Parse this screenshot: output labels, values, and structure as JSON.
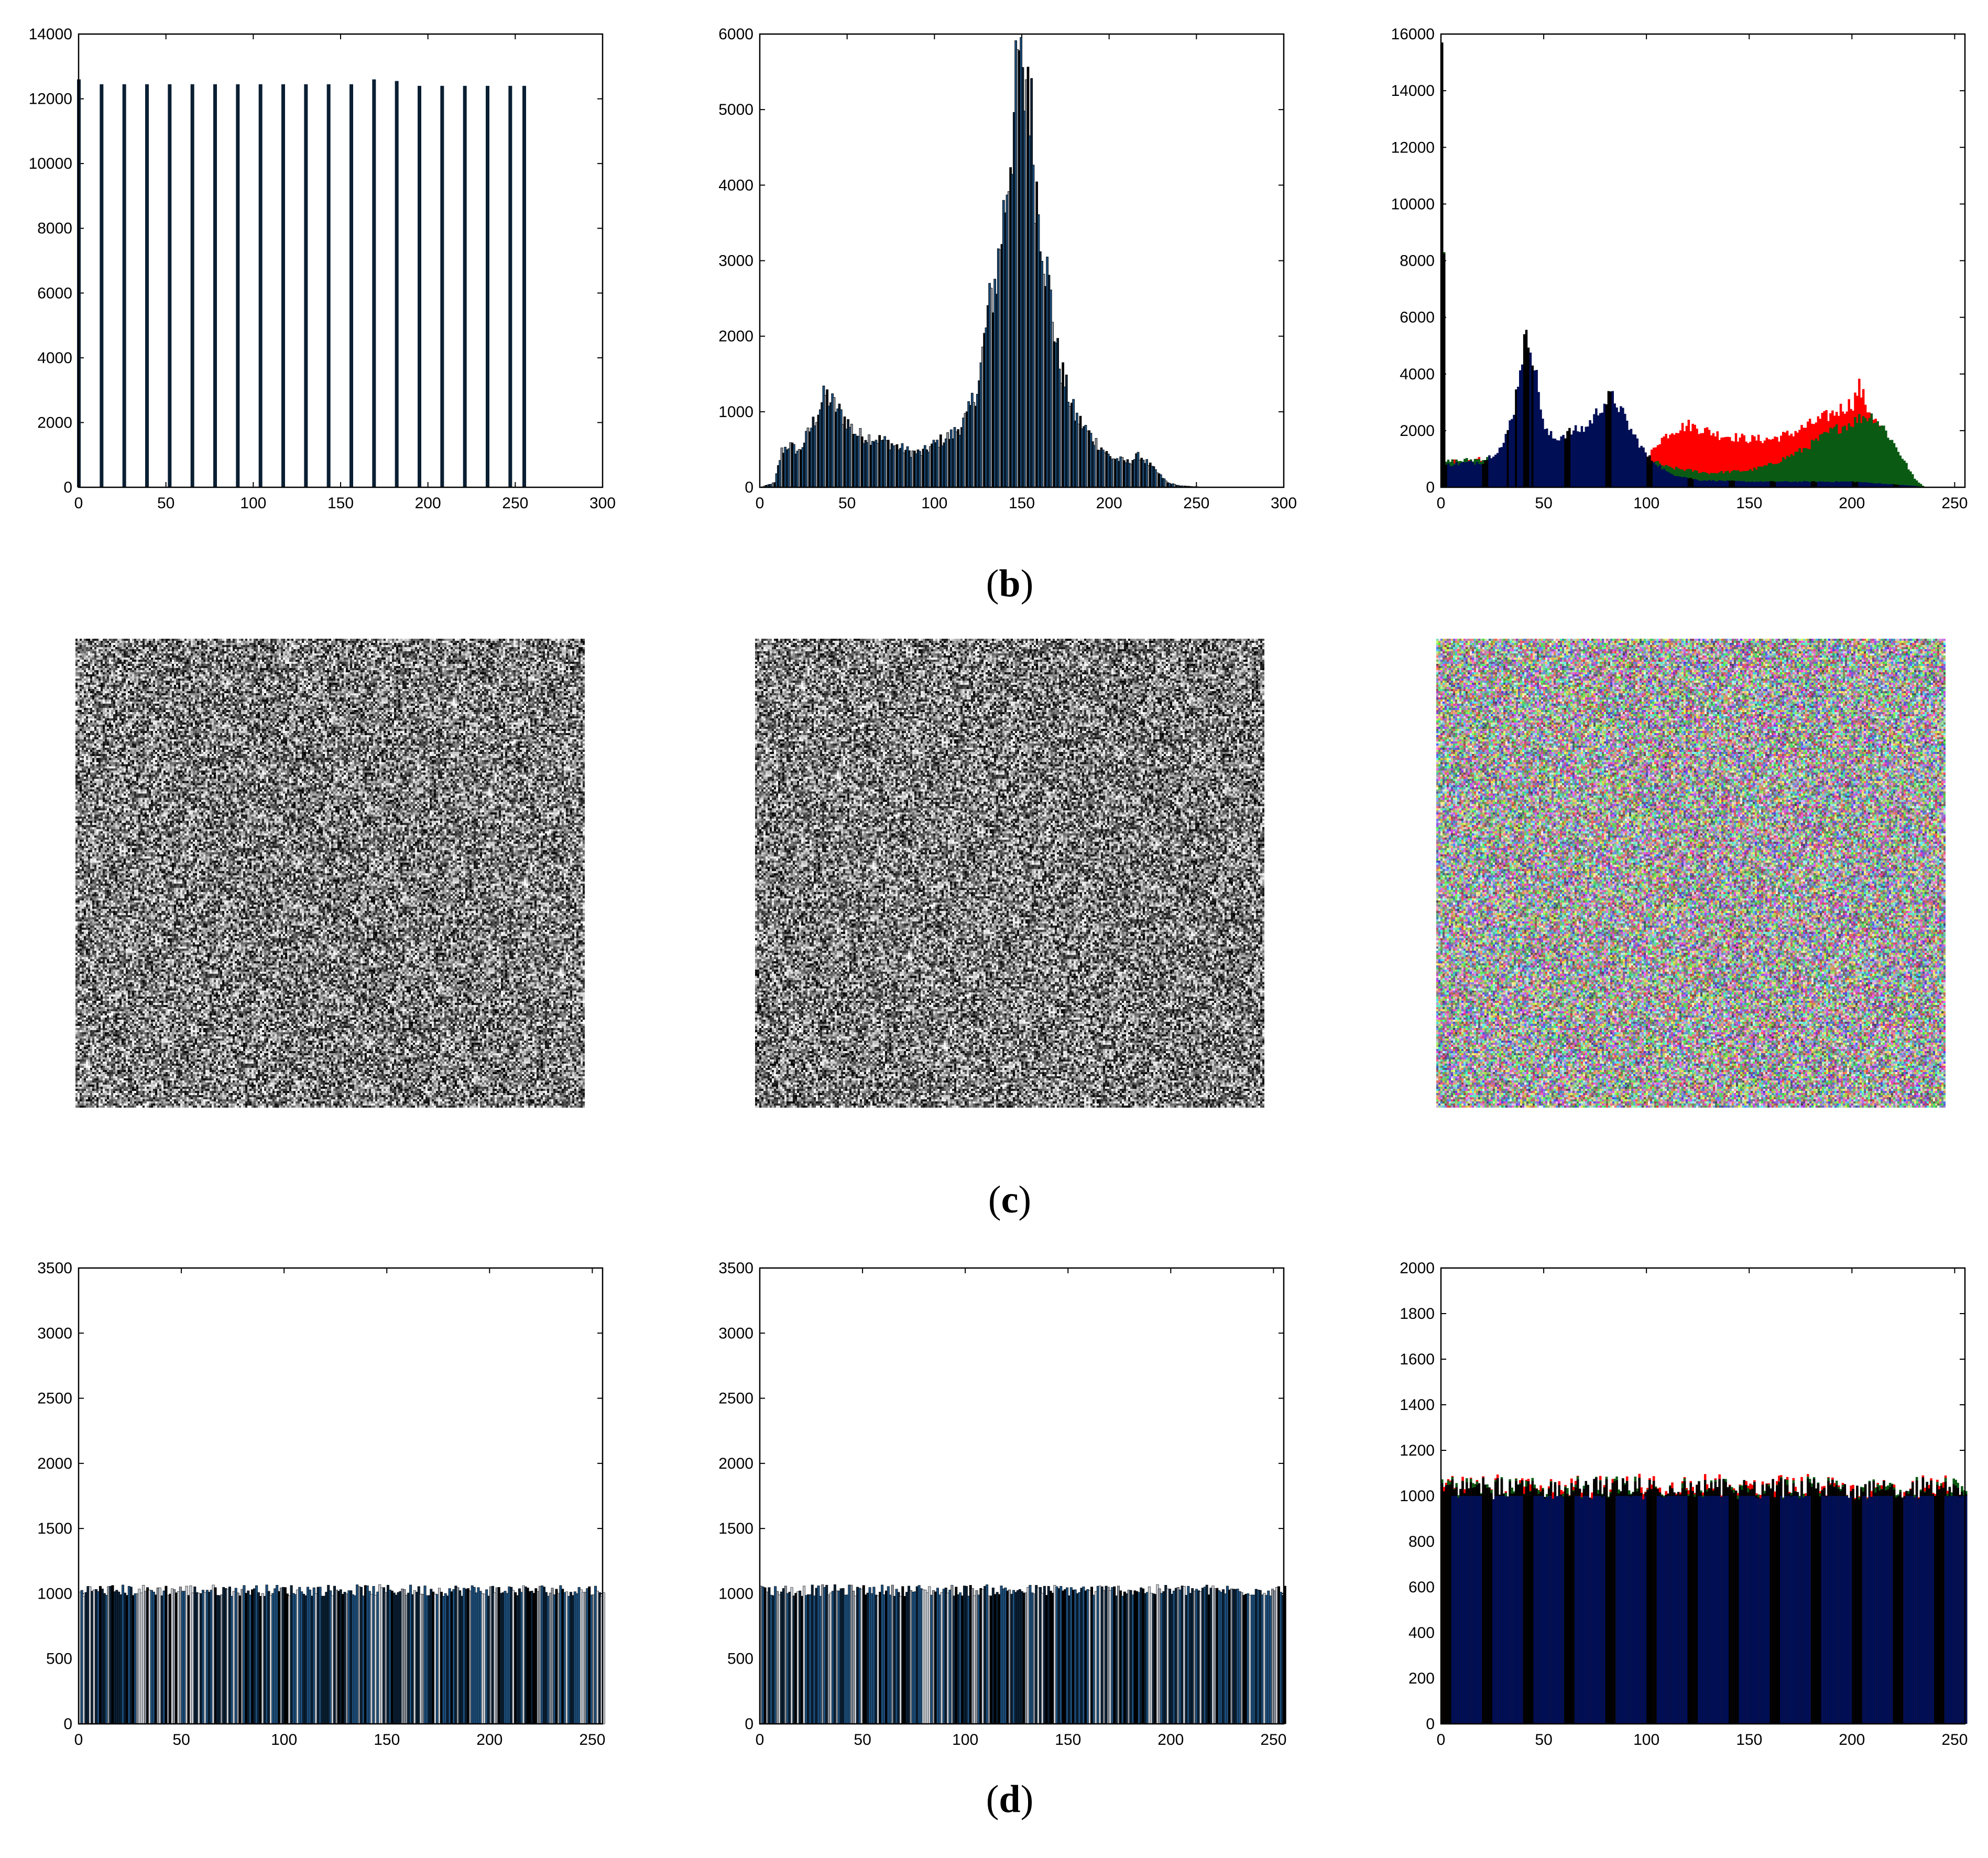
{
  "captions": {
    "b": "b",
    "c": "c",
    "d": "d"
  },
  "colors": {
    "axis": "#000000",
    "bar_dark": "#0a1f33",
    "bar_blue": "#1d4f7c",
    "bar_grey": "#8a9099",
    "bar_black": "#000000",
    "navy": "#000e55",
    "red": "#ff0000",
    "green": "#0a5a14",
    "noise_grey": "#808080"
  },
  "noise_images": [
    {
      "mode": "grey"
    },
    {
      "mode": "grey"
    },
    {
      "mode": "color"
    }
  ],
  "chart_data": [
    {
      "type": "bar",
      "panel": "b1",
      "xlim": [
        0,
        300
      ],
      "ylim": [
        0,
        14000
      ],
      "xticks": [
        0,
        50,
        100,
        150,
        200,
        250,
        300
      ],
      "yticks": [
        0,
        2000,
        4000,
        6000,
        8000,
        10000,
        12000,
        14000
      ],
      "x": [
        0,
        13,
        26,
        39,
        52,
        65,
        78,
        91,
        104,
        117,
        130,
        143,
        156,
        169,
        182,
        195,
        208,
        221,
        234,
        247,
        255
      ],
      "values": [
        12600,
        12450,
        12450,
        12450,
        12450,
        12450,
        12450,
        12450,
        12450,
        12450,
        12450,
        12450,
        12450,
        12600,
        12550,
        12400,
        12400,
        12400,
        12400,
        12400,
        12400
      ]
    },
    {
      "type": "bar",
      "panel": "b2",
      "xlim": [
        0,
        300
      ],
      "ylim": [
        0,
        6000
      ],
      "xticks": [
        0,
        50,
        100,
        150,
        200,
        250,
        300
      ],
      "yticks": [
        0,
        1000,
        2000,
        3000,
        4000,
        5000,
        6000
      ],
      "profile": [
        [
          0,
          0
        ],
        [
          8,
          60
        ],
        [
          12,
          480
        ],
        [
          16,
          560
        ],
        [
          22,
          470
        ],
        [
          30,
          850
        ],
        [
          37,
          1230
        ],
        [
          45,
          1000
        ],
        [
          55,
          700
        ],
        [
          70,
          620
        ],
        [
          85,
          470
        ],
        [
          92,
          450
        ],
        [
          100,
          580
        ],
        [
          110,
          700
        ],
        [
          118,
          920
        ],
        [
          125,
          1400
        ],
        [
          130,
          2300
        ],
        [
          135,
          2800
        ],
        [
          140,
          3800
        ],
        [
          145,
          4900
        ],
        [
          148,
          5750
        ],
        [
          150,
          5100
        ],
        [
          153,
          5600
        ],
        [
          157,
          4100
        ],
        [
          163,
          3000
        ],
        [
          170,
          1750
        ],
        [
          175,
          1300
        ],
        [
          180,
          950
        ],
        [
          190,
          650
        ],
        [
          200,
          400
        ],
        [
          210,
          330
        ],
        [
          217,
          420
        ],
        [
          225,
          240
        ],
        [
          233,
          60
        ],
        [
          240,
          20
        ],
        [
          255,
          0
        ]
      ]
    },
    {
      "type": "area",
      "panel": "b3",
      "xlim": [
        0,
        255
      ],
      "ylim": [
        0,
        16000
      ],
      "xticks": [
        0,
        50,
        100,
        150,
        200,
        250
      ],
      "yticks": [
        0,
        2000,
        4000,
        6000,
        8000,
        10000,
        12000,
        14000,
        16000
      ],
      "series": [
        {
          "color": "red",
          "profile": [
            [
              0,
              15700
            ],
            [
              2,
              900
            ],
            [
              20,
              1000
            ],
            [
              100,
              1000
            ],
            [
              105,
              1600
            ],
            [
              112,
              2000
            ],
            [
              120,
              2200
            ],
            [
              135,
              1850
            ],
            [
              150,
              1700
            ],
            [
              160,
              1700
            ],
            [
              170,
              1900
            ],
            [
              180,
              2250
            ],
            [
              190,
              2600
            ],
            [
              200,
              3000
            ],
            [
              203,
              3550
            ],
            [
              207,
              2800
            ],
            [
              212,
              2200
            ],
            [
              220,
              1200
            ],
            [
              230,
              200
            ],
            [
              235,
              0
            ],
            [
              255,
              0
            ]
          ]
        },
        {
          "color": "green",
          "profile": [
            [
              0,
              15700
            ],
            [
              2,
              900
            ],
            [
              20,
              1000
            ],
            [
              100,
              1000
            ],
            [
              110,
              700
            ],
            [
              130,
              500
            ],
            [
              150,
              600
            ],
            [
              160,
              800
            ],
            [
              175,
              1300
            ],
            [
              190,
              2000
            ],
            [
              200,
              2300
            ],
            [
              205,
              2500
            ],
            [
              210,
              2500
            ],
            [
              215,
              2100
            ],
            [
              222,
              1300
            ],
            [
              230,
              300
            ],
            [
              235,
              0
            ],
            [
              255,
              0
            ]
          ]
        },
        {
          "color": "navy",
          "profile": [
            [
              0,
              15700
            ],
            [
              2,
              800
            ],
            [
              10,
              850
            ],
            [
              20,
              900
            ],
            [
              30,
              1500
            ],
            [
              35,
              2800
            ],
            [
              38,
              4300
            ],
            [
              40,
              5100
            ],
            [
              43,
              5200
            ],
            [
              45,
              4300
            ],
            [
              50,
              2000
            ],
            [
              55,
              1700
            ],
            [
              60,
              1900
            ],
            [
              70,
              2100
            ],
            [
              78,
              2900
            ],
            [
              82,
              3200
            ],
            [
              85,
              3000
            ],
            [
              92,
              2000
            ],
            [
              100,
              1100
            ],
            [
              110,
              500
            ],
            [
              125,
              250
            ],
            [
              150,
              200
            ],
            [
              200,
              200
            ],
            [
              210,
              150
            ],
            [
              220,
              100
            ],
            [
              230,
              50
            ],
            [
              235,
              0
            ],
            [
              255,
              0
            ]
          ]
        }
      ]
    },
    {
      "type": "bar",
      "panel": "d1",
      "xlim": [
        0,
        255
      ],
      "ylim": [
        0,
        3500
      ],
      "xticks": [
        0,
        50,
        100,
        150,
        200,
        250
      ],
      "yticks": [
        0,
        500,
        1000,
        1500,
        2000,
        2500,
        3000,
        3500
      ],
      "mean": 1025,
      "spread": 45
    },
    {
      "type": "bar",
      "panel": "d2",
      "xlim": [
        0,
        255
      ],
      "ylim": [
        0,
        3500
      ],
      "xticks": [
        0,
        50,
        100,
        150,
        200,
        250
      ],
      "yticks": [
        0,
        500,
        1000,
        1500,
        2000,
        2500,
        3000,
        3500
      ],
      "mean": 1025,
      "spread": 45
    },
    {
      "type": "bar",
      "panel": "d3",
      "xlim": [
        0,
        255
      ],
      "ylim": [
        0,
        2000
      ],
      "xticks": [
        0,
        50,
        100,
        150,
        200,
        250
      ],
      "yticks": [
        0,
        200,
        400,
        600,
        800,
        1000,
        1200,
        1400,
        1600,
        1800,
        2000
      ],
      "mean": 1030,
      "spread": 45
    }
  ]
}
